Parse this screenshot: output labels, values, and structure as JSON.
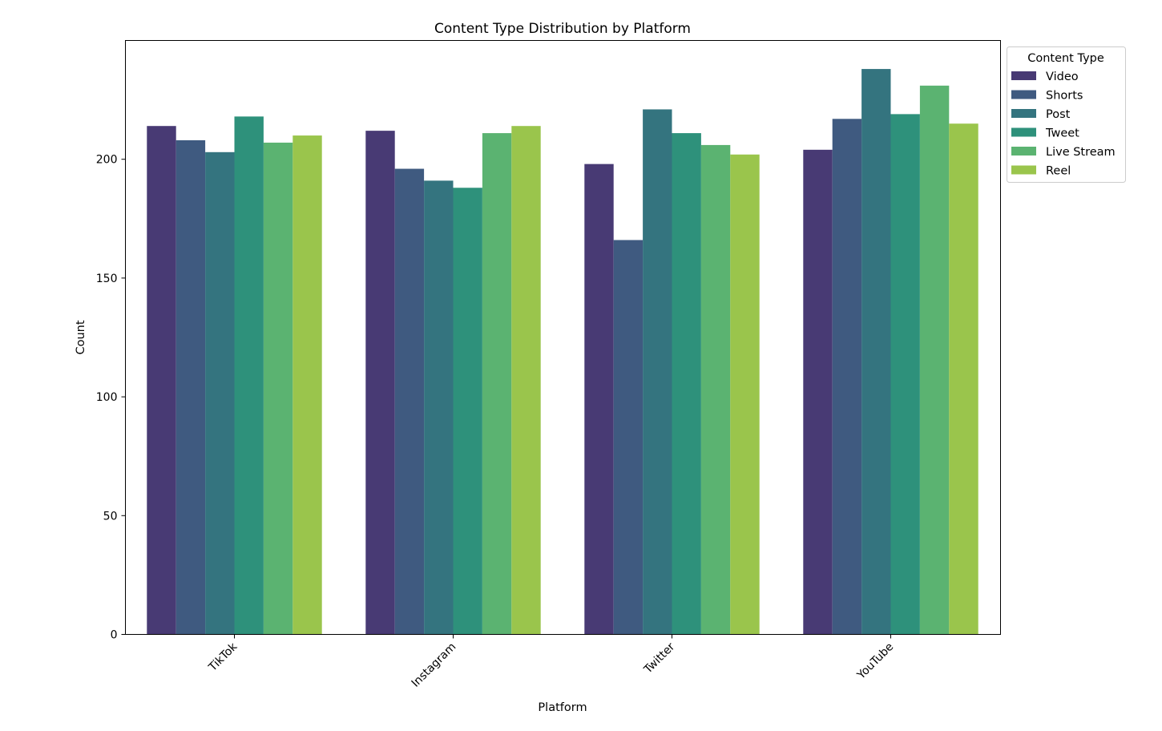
{
  "chart_data": {
    "type": "bar",
    "title": "Content Type Distribution by Platform",
    "xlabel": "Platform",
    "ylabel": "Count",
    "ylim": [
      0,
      250
    ],
    "yticks": [
      0,
      50,
      100,
      150,
      200
    ],
    "grid": false,
    "legend": {
      "title": "Content Type",
      "placement": "outside-top-right"
    },
    "categories": [
      "TikTok",
      "Instagram",
      "Twitter",
      "YouTube"
    ],
    "series": [
      {
        "name": "Video",
        "color": "#483a74",
        "values": [
          214,
          212,
          198,
          204
        ]
      },
      {
        "name": "Shorts",
        "color": "#3f5a80",
        "values": [
          208,
          196,
          166,
          217
        ]
      },
      {
        "name": "Post",
        "color": "#34747f",
        "values": [
          203,
          191,
          221,
          238
        ]
      },
      {
        "name": "Tweet",
        "color": "#2e917b",
        "values": [
          218,
          188,
          211,
          219
        ]
      },
      {
        "name": "Live Stream",
        "color": "#5bb371",
        "values": [
          207,
          211,
          206,
          231
        ]
      },
      {
        "name": "Reel",
        "color": "#9ac54c",
        "values": [
          210,
          214,
          202,
          215
        ]
      }
    ]
  }
}
